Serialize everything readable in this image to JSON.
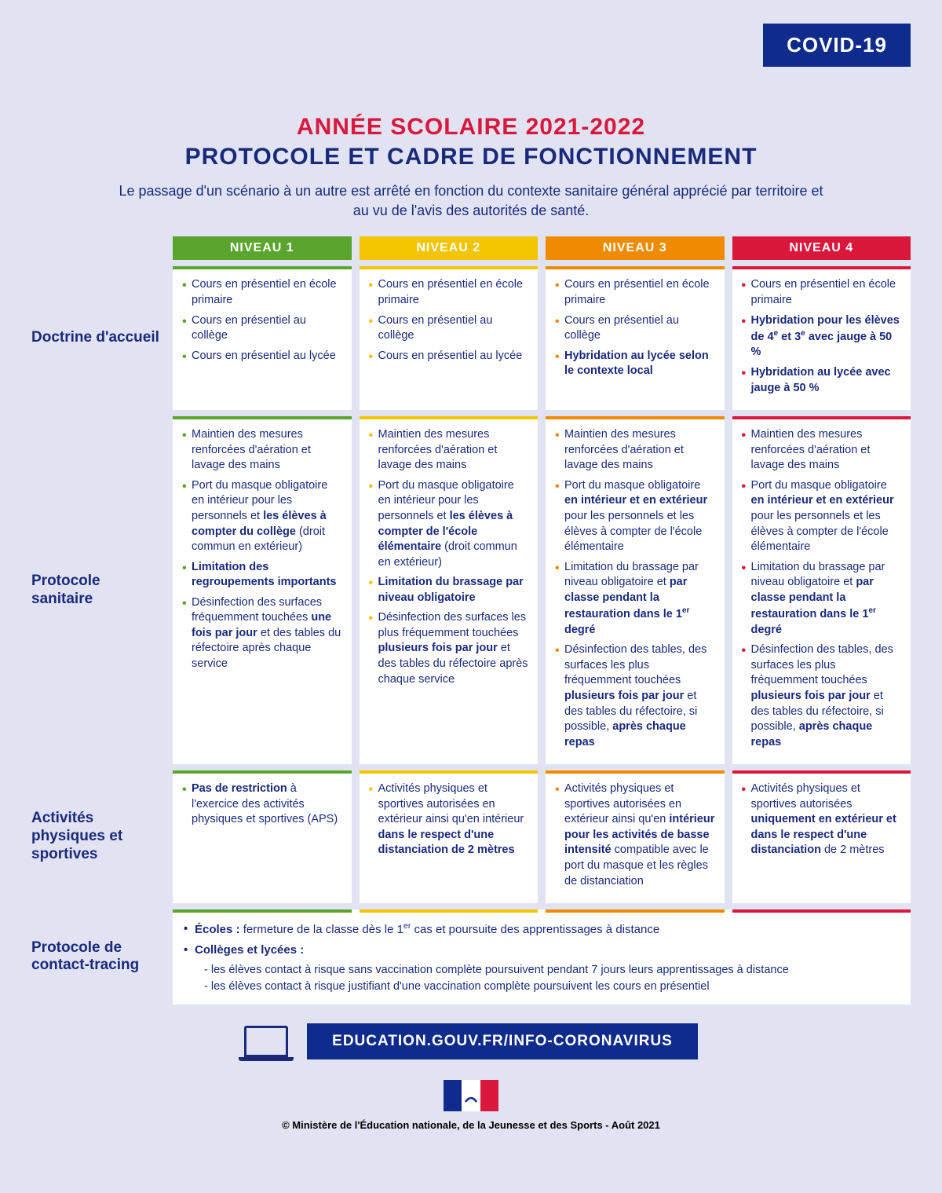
{
  "badge": "COVID-19",
  "title_line1": "ANNÉE SCOLAIRE 2021-2022",
  "title_line2": "PROTOCOLE ET CADRE DE FONCTIONNEMENT",
  "intro": "Le passage d'un scénario à un autre est arrêté en fonction du contexte sanitaire général apprécié par territoire et au vu de l'avis des autorités de santé.",
  "colors": {
    "level1": "#5aa52e",
    "level2": "#f3c500",
    "level3": "#f08a00",
    "level4": "#d9183b",
    "brand_blue": "#0f2b8c",
    "text_blue": "#1a2a7a",
    "bg": "#e1e3f2"
  },
  "levels": {
    "l1": "NIVEAU 1",
    "l2": "NIVEAU 2",
    "l3": "NIVEAU 3",
    "l4": "NIVEAU 4"
  },
  "rows": {
    "doctrine": {
      "label": "Doctrine d'accueil",
      "c1": [
        "Cours en présentiel en école primaire",
        "Cours en présentiel au collège",
        "Cours en présentiel au lycée"
      ],
      "c2": [
        "Cours en présentiel en école primaire",
        "Cours en présentiel au collège",
        "Cours en présentiel au lycée"
      ],
      "c3": [
        "Cours en présentiel en école primaire",
        "Cours en présentiel au collège",
        "<b>Hybridation au lycée selon le contexte local</b>"
      ],
      "c4": [
        "Cours en présentiel en école primaire",
        "<b>Hybridation pour les élèves de 4<sup>e</sup> et 3<sup>e</sup> avec jauge à 50 %</b>",
        "<b>Hybridation au lycée avec jauge à 50 %</b>"
      ]
    },
    "sanitaire": {
      "label": "Protocole sanitaire",
      "c1": [
        "Maintien des mesures renforcées d'aération et lavage des mains",
        "Port du masque obligatoire en intérieur pour les personnels et <b>les élèves à compter du collège</b> (droit commun en extérieur)",
        "<b>Limitation des regroupements importants</b>",
        "Désinfection des surfaces fréquemment touchées <b>une fois par jour</b> et des tables du réfectoire après chaque service"
      ],
      "c2": [
        "Maintien des mesures renforcées d'aération et lavage des mains",
        "Port du masque obligatoire en intérieur pour les personnels et <b>les élèves à compter de l'école élémentaire</b> (droit commun en extérieur)",
        "<b>Limitation du brassage par niveau obligatoire</b>",
        "Désinfection des surfaces les plus fréquemment touchées <b>plusieurs fois par jour</b> et des tables du réfectoire après chaque service"
      ],
      "c3": [
        "Maintien des mesures renforcées d'aération et lavage des mains",
        "Port du masque obligatoire <b>en intérieur et en extérieur</b> pour les personnels et les élèves à compter de l'école élémentaire",
        "Limitation du brassage par niveau obligatoire et <b>par classe pendant la restauration dans le 1<sup>er</sup> degré</b>",
        "Désinfection des tables, des surfaces les plus fréquemment touchées <b>plusieurs fois par jour</b> et des tables du réfectoire, si possible, <b>après chaque repas</b>"
      ],
      "c4": [
        "Maintien des mesures renforcées d'aération et lavage des mains",
        "Port du masque obligatoire <b>en intérieur et en extérieur</b> pour les personnels et les élèves à compter de l'école élémentaire",
        "Limitation du brassage par niveau obligatoire et <b>par classe pendant la restauration dans le 1<sup>er</sup> degré</b>",
        "Désinfection des tables, des surfaces les plus fréquemment touchées <b>plusieurs fois par jour</b> et des tables du réfectoire, si possible, <b>après chaque repas</b>"
      ]
    },
    "aps": {
      "label": "Activités physiques et sportives",
      "c1": [
        "<b>Pas de restriction</b> à l'exercice des activités physiques et sportives (APS)"
      ],
      "c2": [
        "Activités physiques et sportives autorisées en extérieur ainsi qu'en intérieur <b>dans le respect d'une distanciation de 2 mètres</b>"
      ],
      "c3": [
        "Activités physiques et sportives autorisées en extérieur ainsi qu'en <b>intérieur pour les activités de basse intensité</b> compatible avec le port du masque et les règles de distanciation"
      ],
      "c4": [
        "Activités physiques et sportives autorisées <b>uniquement en extérieur et dans le respect d'une distanciation</b> de 2 mètres"
      ]
    },
    "tracing": {
      "label": "Protocole de contact-tracing",
      "bullets": [
        "<b>Écoles :</b> fermeture de la classe dès le 1<sup>er</sup> cas et poursuite des apprentissages à distance",
        "<b>Collèges et lycées :</b>"
      ],
      "subs": [
        "- les élèves contact à risque sans vaccination complète poursuivent pendant 7 jours leurs apprentissages à distance",
        "- les élèves contact à risque justifiant d'une vaccination complète poursuivent les cours en présentiel"
      ]
    }
  },
  "url": "EDUCATION.GOUV.FR/INFO-CORONAVIRUS",
  "copyright": "© Ministère de l'Éducation nationale, de la Jeunesse et des Sports - Août 2021"
}
